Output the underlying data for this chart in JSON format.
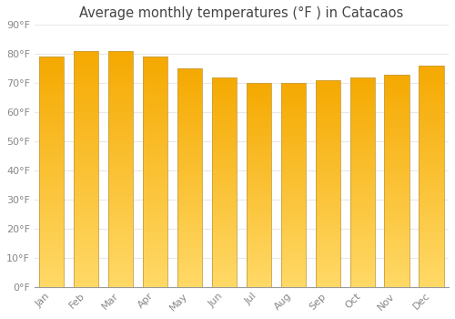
{
  "title": "Average monthly temperatures (°F ) in Catacaos",
  "months": [
    "Jan",
    "Feb",
    "Mar",
    "Apr",
    "May",
    "Jun",
    "Jul",
    "Aug",
    "Sep",
    "Oct",
    "Nov",
    "Dec"
  ],
  "values": [
    79,
    81,
    81,
    79,
    75,
    72,
    70,
    70,
    71,
    72,
    73,
    76
  ],
  "bar_color_top": "#F5A800",
  "bar_color_bottom": "#FFD966",
  "bar_edge_color": "#C8A040",
  "ylim": [
    0,
    90
  ],
  "ytick_step": 10,
  "background_color": "#FFFFFF",
  "plot_bg_color": "#FFFFFF",
  "grid_color": "#E8E8E8",
  "font_family": "DejaVu Sans",
  "title_fontsize": 10.5,
  "tick_fontsize": 8,
  "tick_color": "#888888",
  "bar_width": 0.72
}
